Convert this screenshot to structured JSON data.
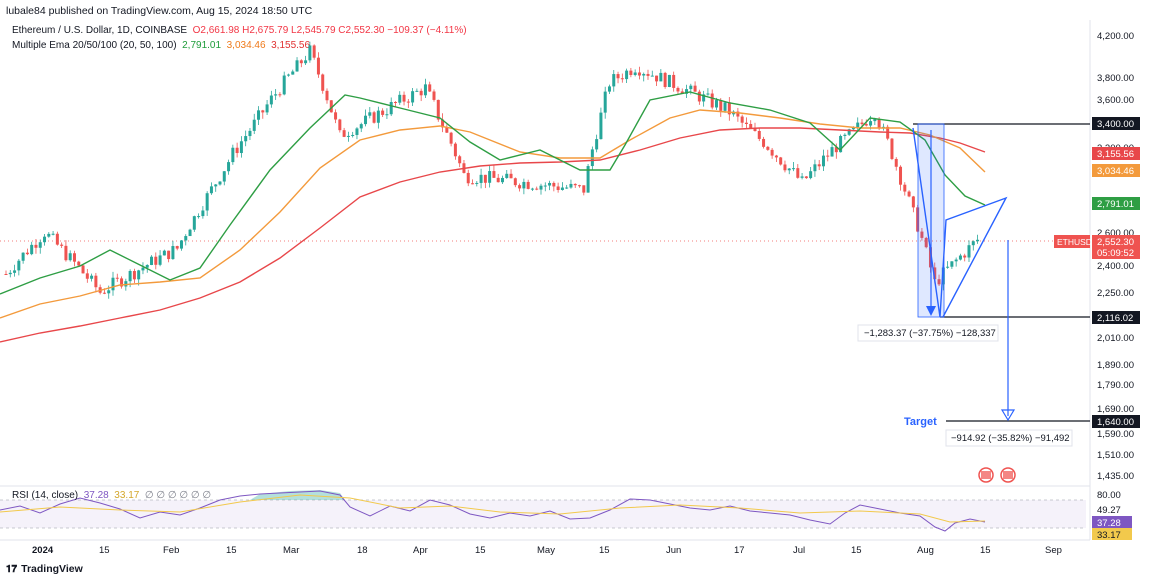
{
  "header": {
    "published": "lubale84 published on TradingView.com, Aug 15, 2024 18:50 UTC",
    "symbol": "Ethereum / U.S. Dollar, 1D, COINBASE",
    "ohlc": "O2,661.98  H2,675.79  L2,545.79  C2,552.30  −109.37 (−4.11%)",
    "ema_label": "Multiple Ema 20/50/100 (20, 50, 100)",
    "ema20": "2,791.01",
    "ema50": "3,034.46",
    "ema100": "3,155.56"
  },
  "price_axis": [
    "4,200.00",
    "3,800.00",
    "3,600.00",
    "3,200.00",
    "2,600.00",
    "2,400.00",
    "2,250.00",
    "2,010.00",
    "1,890.00",
    "1,790.00",
    "1,690.00",
    "1,590.00",
    "1,510.00",
    "1,435.00"
  ],
  "price_tags": {
    "r3400": "3,400.00",
    "ema100": "3,155.56",
    "ema50": "3,034.46",
    "ema20": "2,791.01",
    "current": "2,552.30",
    "countdown": "05:09:52",
    "symbol_tag": "ETHUSD",
    "s2116": "2,116.02",
    "target": "1,640.00"
  },
  "annotations": {
    "measure1": "−1,283.37 (−37.75%) −128,337",
    "measure2": "−914.92 (−35.82%) −91,492",
    "target_label": "Target"
  },
  "rsi": {
    "legend": "RSI (14, close)",
    "v1": "37.28",
    "v2": "33.17",
    "circles": "∅ ∅ ∅ ∅ ∅ ∅",
    "axis": [
      "80.00",
      "49.27"
    ],
    "tag_rsi": "37.28",
    "tag_ma": "33.17"
  },
  "time_axis": [
    "2024",
    "15",
    "Feb",
    "15",
    "Mar",
    "18",
    "Apr",
    "15",
    "May",
    "15",
    "Jun",
    "17",
    "Jul",
    "15",
    "Aug",
    "15",
    "Sep"
  ],
  "footer": {
    "brand": "TradingView"
  },
  "colors": {
    "up": "#26a69a",
    "down": "#ef5350",
    "ema20": "#2e9e44",
    "ema50": "#f39a3c",
    "ema100": "#e8474a",
    "accent": "#2962ff"
  },
  "chart_data": {
    "type": "candlestick",
    "instrument": "Ethereum / U.S. Dollar, 1D, COINBASE",
    "x_range": [
      "2024-01-01",
      "2024-08-15"
    ],
    "approx_close_path": [
      {
        "date": "2024-01-01",
        "close": 2350
      },
      {
        "date": "2024-01-10",
        "close": 2600
      },
      {
        "date": "2024-01-23",
        "close": 2250
      },
      {
        "date": "2024-02-10",
        "close": 2500
      },
      {
        "date": "2024-02-28",
        "close": 3400
      },
      {
        "date": "2024-03-12",
        "close": 4050
      },
      {
        "date": "2024-03-19",
        "close": 3300
      },
      {
        "date": "2024-04-08",
        "close": 3700
      },
      {
        "date": "2024-04-17",
        "close": 3000
      },
      {
        "date": "2024-05-01",
        "close": 2950
      },
      {
        "date": "2024-05-15",
        "close": 2900
      },
      {
        "date": "2024-05-21",
        "close": 3750
      },
      {
        "date": "2024-05-27",
        "close": 3900
      },
      {
        "date": "2024-06-18",
        "close": 3500
      },
      {
        "date": "2024-07-05",
        "close": 2950
      },
      {
        "date": "2024-07-22",
        "close": 3500
      },
      {
        "date": "2024-08-05",
        "close": 2300
      },
      {
        "date": "2024-08-15",
        "close": 2552.3
      }
    ],
    "levels": {
      "resistance": 3400.0,
      "support": 2116.02,
      "target": 1640.0
    },
    "ema": {
      "ema20": 2791.01,
      "ema50": 3034.46,
      "ema100": 3155.56
    },
    "rsi": {
      "value": 37.28,
      "ma": 33.17,
      "upper": 80.0,
      "mid": 49.27
    }
  }
}
